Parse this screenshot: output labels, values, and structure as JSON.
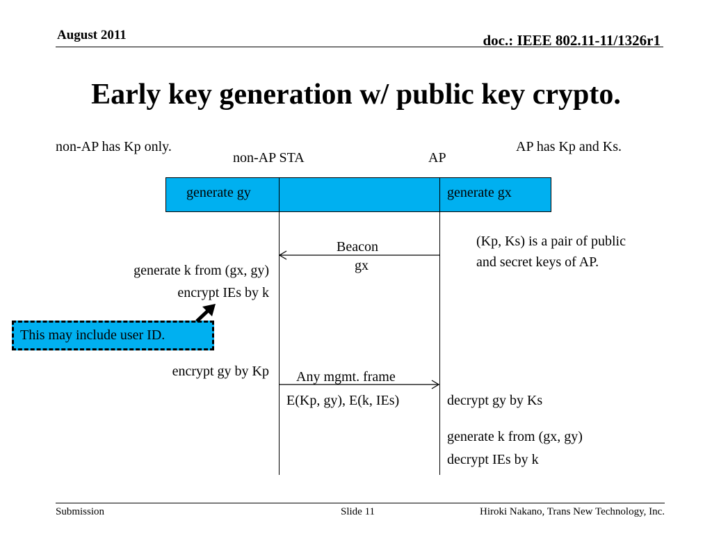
{
  "header": {
    "date": "August 2011",
    "doc_id": "doc.: IEEE 802.11-11/1326r1"
  },
  "title": "Early key generation w/ public key crypto.",
  "notes": {
    "non_ap_keys": "non-AP has Kp only.",
    "ap_keys": "AP has Kp and Ks.",
    "key_pair": [
      "(Kp, Ks) is a pair of public",
      "and secret keys of AP."
    ]
  },
  "lifelines": {
    "sta_label": "non-AP STA",
    "ap_label": "AP"
  },
  "bar": {
    "sta_step": "generate gy",
    "ap_step": "generate gx"
  },
  "messages": {
    "beacon": {
      "label": "Beacon",
      "payload": "gx"
    },
    "mgmt": {
      "label": "Any mgmt. frame",
      "payload": "E(Kp, gy), E(k, IEs)"
    }
  },
  "sta_steps": {
    "gen_k": "generate k from (gx, gy)",
    "enc_ies": "encrypt IEs by k",
    "enc_gy": "encrypt gy by Kp"
  },
  "callout": "This may include user ID.",
  "ap_steps": {
    "dec_gy": "decrypt gy by Ks",
    "gen_k": "generate k from (gx, gy)",
    "dec_ies": "decrypt IEs by k"
  },
  "footer": {
    "left": "Submission",
    "center": "Slide 11",
    "right": "Hiroki Nakano, Trans New Technology, Inc."
  },
  "colors": {
    "accent": "#00b0f0",
    "ink": "#000000"
  }
}
